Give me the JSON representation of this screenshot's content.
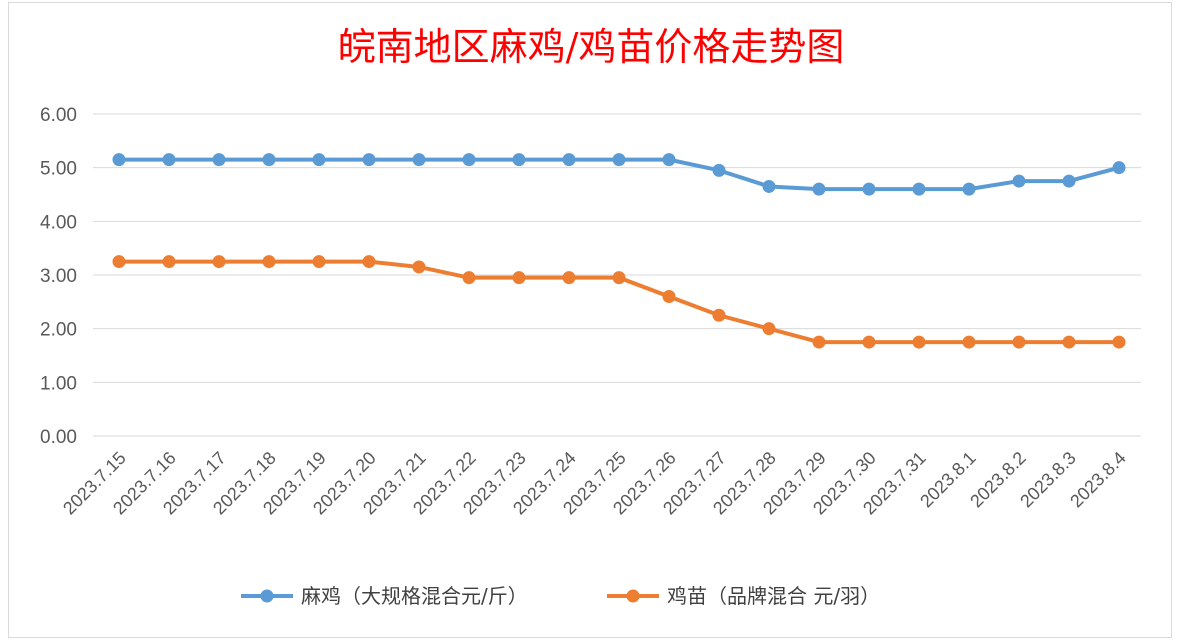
{
  "chart_data": {
    "type": "line",
    "title": "皖南地区麻鸡/鸡苗价格走势图",
    "categories": [
      "2023.7.15",
      "2023.7.16",
      "2023.7.17",
      "2023.7.18",
      "2023.7.19",
      "2023.7.20",
      "2023.7.21",
      "2023.7.22",
      "2023.7.23",
      "2023.7.24",
      "2023.7.25",
      "2023.7.26",
      "2023.7.27",
      "2023.7.28",
      "2023.7.29",
      "2023.7.30",
      "2023.7.31",
      "2023.8.1",
      "2023.8.2",
      "2023.8.3",
      "2023.8.4"
    ],
    "ylim": [
      0,
      6
    ],
    "yticks": [
      "0.00",
      "1.00",
      "2.00",
      "3.00",
      "4.00",
      "5.00",
      "6.00"
    ],
    "grid": true,
    "legend_position": "bottom",
    "series": [
      {
        "name": "麻鸡（大规格混合元/斤）",
        "color": "#5b9bd5",
        "values": [
          5.15,
          5.15,
          5.15,
          5.15,
          5.15,
          5.15,
          5.15,
          5.15,
          5.15,
          5.15,
          5.15,
          5.15,
          4.95,
          4.65,
          4.6,
          4.6,
          4.6,
          4.6,
          4.75,
          4.75,
          5.0
        ]
      },
      {
        "name": "鸡苗（品牌混合 元/羽）",
        "color": "#ed7d31",
        "values": [
          3.25,
          3.25,
          3.25,
          3.25,
          3.25,
          3.25,
          3.15,
          2.95,
          2.95,
          2.95,
          2.95,
          2.6,
          2.25,
          2.0,
          1.75,
          1.75,
          1.75,
          1.75,
          1.75,
          1.75,
          1.75
        ]
      }
    ]
  }
}
